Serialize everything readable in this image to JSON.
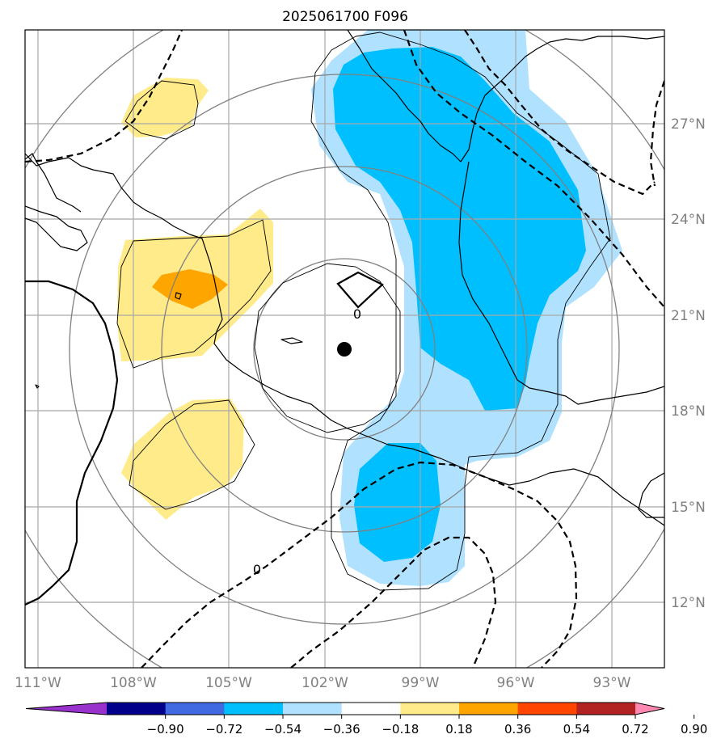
{
  "title": "2025061700 F096",
  "lon_labels": [
    "111°W",
    "108°W",
    "105°W",
    "102°W",
    "99°W",
    "96°W",
    "93°W"
  ],
  "lat_labels": [
    "27°N",
    "24°N",
    "21°N",
    "18°N",
    "15°N",
    "12°N"
  ],
  "contour_labels": [
    "0",
    "0"
  ],
  "colorbar": {
    "colors": [
      "#9932cc",
      "#00008b",
      "#4169e1",
      "#00bfff",
      "#b0e2ff",
      "#ffffff",
      "#ffeb8a",
      "#ffa500",
      "#ff4500",
      "#b22222",
      "#ff88b0"
    ],
    "tick_labels": [
      "−0.90",
      "−0.72",
      "−0.54",
      "−0.36",
      "−0.18",
      "0.18",
      "0.36",
      "0.54",
      "0.72",
      "0.90"
    ]
  },
  "colors": {
    "pos_light": "#ffeb8a",
    "pos_mid": "#ffa500",
    "neg_light": "#b0e2ff",
    "neg_mid": "#00bfff",
    "grid": "#a8a8a8",
    "ring": "#808080",
    "tick_text": "#808080"
  },
  "marker": "storm-center-dot"
}
